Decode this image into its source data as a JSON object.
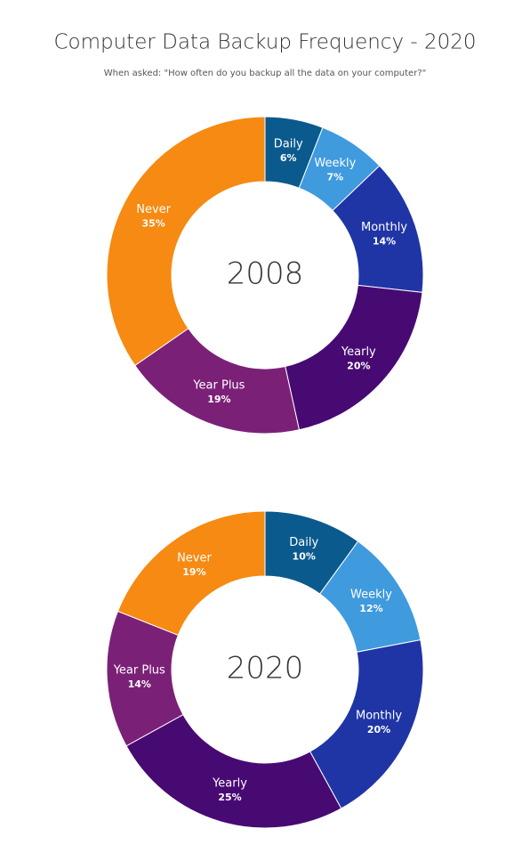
{
  "title": "Computer Data Backup Frequency - 2020",
  "subtitle": "When asked: \"How often do you backup all the data on your computer?\"",
  "chart_data": [
    {
      "type": "donut",
      "center_label": "2008",
      "categories": [
        "Daily",
        "Weekly",
        "Monthly",
        "Yearly",
        "Year Plus",
        "Never"
      ],
      "values": [
        6,
        7,
        14,
        20,
        19,
        35
      ],
      "value_labels": [
        "6%",
        "7%",
        "14%",
        "20%",
        "19%",
        "35%"
      ],
      "colors": [
        "#0b5a8e",
        "#3f9ade",
        "#1f35a6",
        "#470a73",
        "#7b2077",
        "#f68a12"
      ]
    },
    {
      "type": "donut",
      "center_label": "2020",
      "categories": [
        "Daily",
        "Weekly",
        "Monthly",
        "Yearly",
        "Year Plus",
        "Never"
      ],
      "values": [
        10,
        12,
        20,
        25,
        14,
        19
      ],
      "value_labels": [
        "10%",
        "12%",
        "20%",
        "25%",
        "14%",
        "19%"
      ],
      "colors": [
        "#0b5a8e",
        "#3f9ade",
        "#1f35a6",
        "#470a73",
        "#7b2077",
        "#f68a12"
      ]
    }
  ]
}
